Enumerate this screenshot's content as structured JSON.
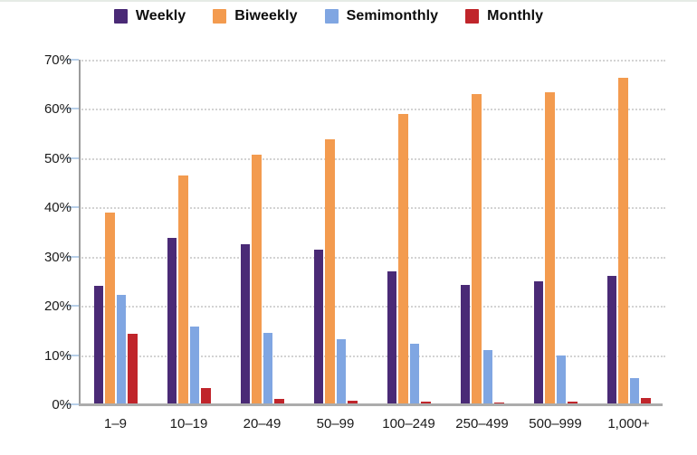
{
  "chart_data": {
    "type": "bar",
    "title": "",
    "xlabel": "",
    "ylabel": "",
    "categories": [
      "1–9",
      "10–19",
      "20–49",
      "50–99",
      "100–249",
      "250–499",
      "500–999",
      "1,000+"
    ],
    "series": [
      {
        "name": "Weekly",
        "color": "#4a2a76",
        "values": [
          24.0,
          33.8,
          32.5,
          31.4,
          27.0,
          24.3,
          25.0,
          26.1
        ]
      },
      {
        "name": "Biweekly",
        "color": "#f39b4f",
        "values": [
          39.0,
          46.4,
          50.8,
          53.8,
          59.0,
          63.1,
          63.4,
          66.3
        ]
      },
      {
        "name": "Semimonthly",
        "color": "#80a6e2",
        "values": [
          22.2,
          15.8,
          14.5,
          13.3,
          12.4,
          11.1,
          9.9,
          5.4
        ]
      },
      {
        "name": "Monthly",
        "color": "#c0252b",
        "values": [
          14.3,
          3.4,
          1.1,
          0.8,
          0.5,
          0.4,
          0.6,
          1.2
        ]
      }
    ],
    "ylim": [
      0,
      70
    ],
    "ytick_step": 10,
    "ytick_labels": [
      "0%",
      "10%",
      "20%",
      "30%",
      "40%",
      "50%",
      "60%",
      "70%"
    ],
    "grid": "horizontal-dotted",
    "legend_position": "top"
  },
  "style_colors": {
    "gridline": "#d3d3d3",
    "baseline": "#acacac",
    "y_axis_line": "#9b9b9b",
    "tick": "#b7cfe9",
    "label_text": "#1a1a1a",
    "legend_text": "#0d0d0d",
    "background": "#ffffff"
  }
}
